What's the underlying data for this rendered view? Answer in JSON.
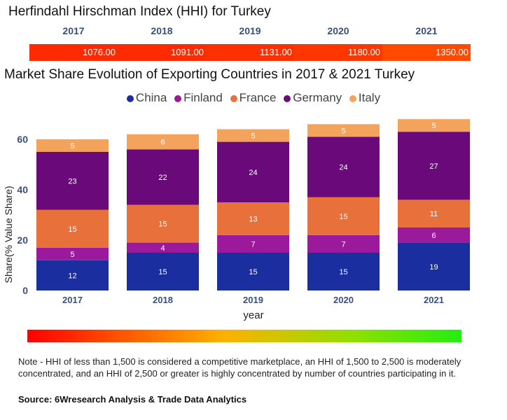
{
  "hhi": {
    "title": "Herfindahl Hirschman Index (HHI) for Turkey",
    "years": [
      "2017",
      "2018",
      "2019",
      "2020",
      "2021"
    ],
    "values": [
      "1076.00",
      "1091.00",
      "1131.00",
      "1180.00",
      "1350.00"
    ],
    "cell_colors": [
      "#ff2a00",
      "#ff2b00",
      "#ff3000",
      "#ff3600",
      "#ff4a00"
    ]
  },
  "chart_title": "Market Share Evolution of Exporting Countries in 2017 & 2021 Turkey",
  "chart_data": {
    "type": "bar",
    "stacked": true,
    "categories": [
      "2017",
      "2018",
      "2019",
      "2020",
      "2021"
    ],
    "series": [
      {
        "name": "China",
        "color": "#1a2ea0",
        "values": [
          12,
          15,
          15,
          15,
          19
        ]
      },
      {
        "name": "Finland",
        "color": "#9b1a9b",
        "values": [
          5,
          4,
          7,
          7,
          6
        ]
      },
      {
        "name": "France",
        "color": "#e8703a",
        "values": [
          15,
          15,
          13,
          15,
          11
        ]
      },
      {
        "name": "Germany",
        "color": "#6a0a7a",
        "values": [
          23,
          22,
          24,
          24,
          27
        ]
      },
      {
        "name": "Italy",
        "color": "#f4a35c",
        "values": [
          5,
          6,
          5,
          5,
          5
        ]
      }
    ],
    "xlabel": "year",
    "ylabel": "Share(% Value Share)",
    "yticks": [
      0,
      20,
      40,
      60
    ],
    "ylim": [
      0,
      70
    ],
    "legend_position": "top"
  },
  "note": "Note - HHI of less than 1,500 is considered a competitive marketplace, an HHI of 1,500 to 2,500 is moderately concentrated, and an HHI of 2,500 or greater is highly concentrated by number of countries participating in it.",
  "source": "Source: 6Wresearch Analysis & Trade Data Analytics"
}
